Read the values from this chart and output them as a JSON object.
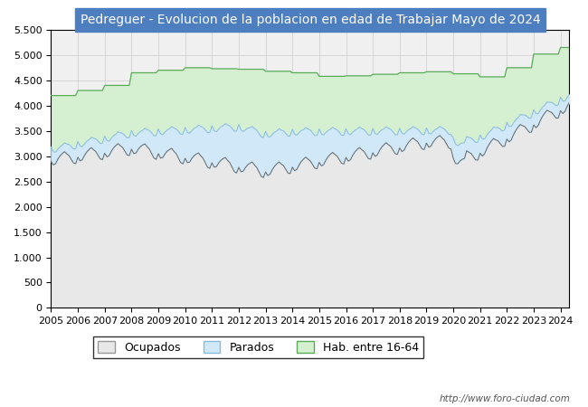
{
  "title": "Pedreguer - Evolucion de la poblacion en edad de Trabajar Mayo de 2024",
  "title_bg": "#4d7ebf",
  "title_color": "white",
  "title_fontsize": 10,
  "ylim": [
    0,
    5500
  ],
  "ytick_labels": [
    "0",
    "500",
    "1.000",
    "1.500",
    "2.000",
    "2.500",
    "3.000",
    "3.500",
    "4.000",
    "4.500",
    "5.000",
    "5.500"
  ],
  "ytick_values": [
    0,
    500,
    1000,
    1500,
    2000,
    2500,
    3000,
    3500,
    4000,
    4500,
    5000,
    5500
  ],
  "color_hab_fill": "#d5f0d0",
  "color_hab_line": "#5aaa5a",
  "color_parados_fill": "#d0e8f8",
  "color_parados_line": "#88bbdd",
  "color_ocupados_fill": "#e8e8e8",
  "color_ocupados_line": "#666666",
  "grid_color": "#cccccc",
  "bg_color": "#f0f0f0",
  "footer": "http://www.foro-ciudad.com",
  "legend_labels": [
    "Ocupados",
    "Parados",
    "Hab. entre 16-64"
  ]
}
